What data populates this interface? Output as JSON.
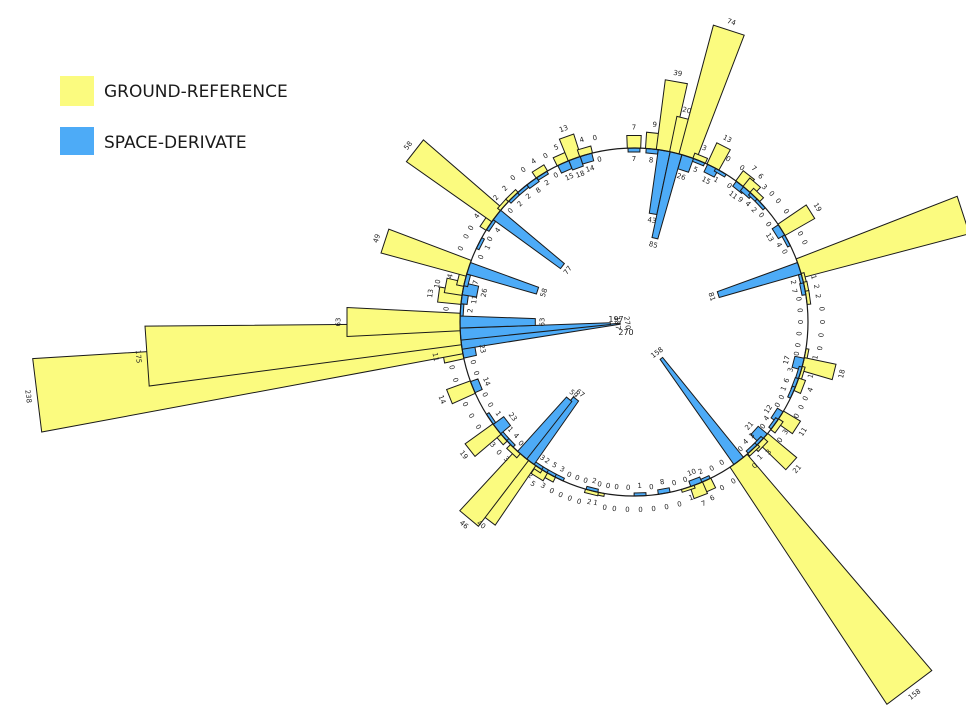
{
  "chart_data": {
    "type": "radial-bar",
    "title": "",
    "colors": {
      "ground": "#fbfb7f",
      "space": "#4dabf7",
      "outline": "#1a1a1a"
    },
    "series": [
      {
        "name": "GROUND-REFERENCE",
        "color": "#fbfb7f"
      },
      {
        "name": "SPACE-DERIVATE",
        "color": "#4dabf7"
      }
    ],
    "legend_position": "top-left",
    "center_labels": [
      "197",
      "270"
    ],
    "categories": [
      {
        "angle": -90,
        "g": 7,
        "s": 7
      },
      {
        "angle": -84,
        "g": 9,
        "s": 8
      },
      {
        "angle": -80,
        "g": 39,
        "s": 43
      },
      {
        "angle": -76,
        "g": 20,
        "s": 85
      },
      {
        "angle": -72,
        "g": 74,
        "s": 26
      },
      {
        "angle": -68,
        "g": 3,
        "s": 5
      },
      {
        "angle": -63,
        "g": 13,
        "s": 15
      },
      {
        "angle": -60,
        "g": 0,
        "s": 1
      },
      {
        "angle": -55,
        "g": 0,
        "s": 0
      },
      {
        "angle": -52,
        "g": 7,
        "s": 11
      },
      {
        "angle": -49,
        "g": 6,
        "s": 9
      },
      {
        "angle": -46,
        "g": 3,
        "s": 4
      },
      {
        "angle": -43,
        "g": 0,
        "s": 2
      },
      {
        "angle": -40,
        "g": 0,
        "s": 0
      },
      {
        "angle": -36,
        "g": 0,
        "s": 0
      },
      {
        "angle": -32,
        "g": 19,
        "s": 13
      },
      {
        "angle": -28,
        "g": 0,
        "s": 4
      },
      {
        "angle": -25,
        "g": 0,
        "s": 0
      },
      {
        "angle": -18,
        "g": 96,
        "s": 81
      },
      {
        "angle": -14,
        "g": 1,
        "s": 2
      },
      {
        "angle": -11,
        "g": 2,
        "s": 7
      },
      {
        "angle": -8,
        "g": 2,
        "s": 0
      },
      {
        "angle": -4,
        "g": 0,
        "s": 0
      },
      {
        "angle": 0,
        "g": 0,
        "s": 0
      },
      {
        "angle": 4,
        "g": 0,
        "s": 0
      },
      {
        "angle": 8,
        "g": 0,
        "s": 0
      },
      {
        "angle": 11,
        "g": 1,
        "s": 0
      },
      {
        "angle": 14,
        "g": 18,
        "s": 17
      },
      {
        "angle": 17,
        "g": 1,
        "s": 3
      },
      {
        "angle": 21,
        "g": 4,
        "s": 6
      },
      {
        "angle": 24,
        "g": 0,
        "s": 1
      },
      {
        "angle": 27,
        "g": 0,
        "s": 0
      },
      {
        "angle": 30,
        "g": 0,
        "s": 0
      },
      {
        "angle": 33,
        "g": 11,
        "s": 12
      },
      {
        "angle": 36,
        "g": 3,
        "s": 4
      },
      {
        "angle": 39,
        "g": 0,
        "s": 0
      },
      {
        "angle": 42,
        "g": 21,
        "s": 21
      },
      {
        "angle": 44,
        "g": 3,
        "s": 3
      },
      {
        "angle": 47,
        "g": 1,
        "s": 4
      },
      {
        "angle": 50,
        "g": 0,
        "s": 0
      },
      {
        "angle": 53,
        "g": 158,
        "s": 158
      },
      {
        "angle": 58,
        "g": 0,
        "s": 0
      },
      {
        "angle": 62,
        "g": 0,
        "s": 0
      },
      {
        "angle": 66,
        "g": 6,
        "s": 2
      },
      {
        "angle": 69,
        "g": 7,
        "s": 10
      },
      {
        "angle": 72,
        "g": 1,
        "s": 0
      },
      {
        "angle": 76,
        "g": 0,
        "s": 0
      },
      {
        "angle": 80,
        "g": 0,
        "s": 8
      },
      {
        "angle": 84,
        "g": 0,
        "s": 0
      },
      {
        "angle": 88,
        "g": 0,
        "s": 1
      },
      {
        "angle": 92,
        "g": 0,
        "s": 0
      },
      {
        "angle": 96,
        "g": 0,
        "s": 0
      },
      {
        "angle": 99,
        "g": 0,
        "s": 0
      },
      {
        "angle": 102,
        "g": 1,
        "s": 0
      },
      {
        "angle": 104,
        "g": 2,
        "s": 2
      },
      {
        "angle": 107,
        "g": 0,
        "s": 0
      },
      {
        "angle": 110,
        "g": 0,
        "s": 0
      },
      {
        "angle": 113,
        "g": 0,
        "s": 0
      },
      {
        "angle": 116,
        "g": 0,
        "s": 3
      },
      {
        "angle": 119,
        "g": 3,
        "s": 5
      },
      {
        "angle": 122,
        "g": 5,
        "s": 2
      },
      {
        "angle": 124,
        "g": 2,
        "s": 3
      },
      {
        "angle": 127,
        "g": 40,
        "s": 67
      },
      {
        "angle": 130,
        "g": 46,
        "s": 59
      },
      {
        "angle": 133,
        "g": 3,
        "s": 0
      },
      {
        "angle": 136,
        "g": 0,
        "s": 4
      },
      {
        "angle": 139,
        "g": 3,
        "s": 1
      },
      {
        "angle": 142,
        "g": 19,
        "s": 23
      },
      {
        "angle": 146,
        "g": 0,
        "s": 1
      },
      {
        "angle": 150,
        "g": 0,
        "s": 0
      },
      {
        "angle": 154,
        "g": 0,
        "s": 0
      },
      {
        "angle": 158,
        "g": 14,
        "s": 14
      },
      {
        "angle": 162,
        "g": 0,
        "s": 0
      },
      {
        "angle": 166,
        "g": 0,
        "s": 0
      },
      {
        "angle": 170,
        "g": 11,
        "s": 23
      },
      {
        "angle": 173,
        "g": 238,
        "s": 270
      },
      {
        "angle": 176,
        "g": 175,
        "s": 197
      },
      {
        "angle": 180,
        "g": 63,
        "s": 63
      },
      {
        "angle": 184,
        "g": 0,
        "s": 2
      },
      {
        "angle": 188,
        "g": 13,
        "s": 11
      },
      {
        "angle": 191,
        "g": 10,
        "s": 26
      },
      {
        "angle": 194,
        "g": 4,
        "s": 7
      },
      {
        "angle": 198,
        "g": 49,
        "s": 58
      },
      {
        "angle": 203,
        "g": 0,
        "s": 0
      },
      {
        "angle": 207,
        "g": 0,
        "s": 1
      },
      {
        "angle": 210,
        "g": 0,
        "s": 0
      },
      {
        "angle": 214,
        "g": 4,
        "s": 4
      },
      {
        "angle": 218,
        "g": 58,
        "s": 77
      },
      {
        "angle": 222,
        "g": 2,
        "s": 0
      },
      {
        "angle": 226,
        "g": 2,
        "s": 2
      },
      {
        "angle": 230,
        "g": 0,
        "s": 2
      },
      {
        "angle": 234,
        "g": 0,
        "s": 8
      },
      {
        "angle": 238,
        "g": 4,
        "s": 2
      },
      {
        "angle": 242,
        "g": 0,
        "s": 0
      },
      {
        "angle": 246,
        "g": 5,
        "s": 15
      },
      {
        "angle": 250,
        "g": 13,
        "s": 18
      },
      {
        "angle": 254,
        "g": 4,
        "s": 14
      },
      {
        "angle": 258,
        "g": 0,
        "s": 0
      }
    ]
  }
}
